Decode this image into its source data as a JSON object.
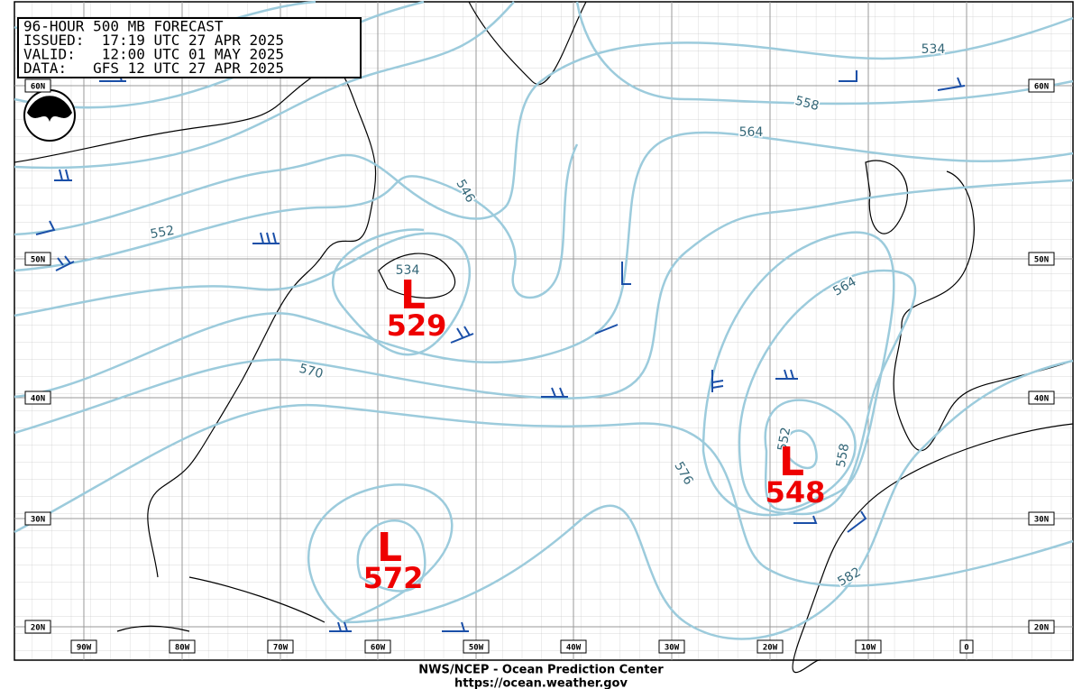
{
  "header": {
    "lines": [
      "96-HOUR 500 MB FORECAST",
      "ISSUED:  17:19 UTC 27 APR 2025",
      "VALID:   12:00 UTC 01 MAY 2025",
      "DATA:   GFS 12 UTC 27 APR 2025"
    ]
  },
  "latitude_labels": [
    "60N",
    "50N",
    "40N",
    "30N",
    "20N"
  ],
  "longitude_labels": [
    "90W",
    "80W",
    "70W",
    "60W",
    "50W",
    "40W",
    "30W",
    "20W",
    "10W",
    "0"
  ],
  "contour_labels": [
    534,
    558,
    564,
    546,
    552,
    534,
    564,
    570,
    576,
    558,
    552,
    582
  ],
  "lows": [
    {
      "symbol": "L",
      "value": 529
    },
    {
      "symbol": "L",
      "value": 572
    },
    {
      "symbol": "L",
      "value": 548
    }
  ],
  "footer": {
    "agency": "NWS/NCEP - Ocean Prediction Center",
    "url": "https://ocean.weather.gov"
  }
}
